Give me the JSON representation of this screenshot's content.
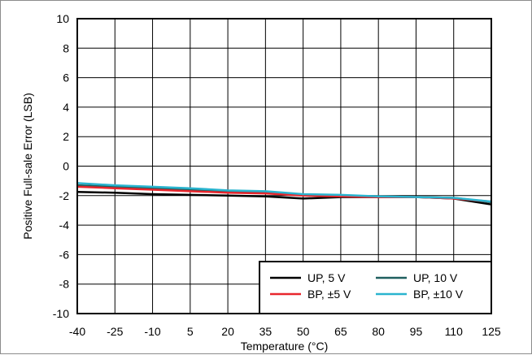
{
  "chart_data": {
    "type": "line",
    "title": "",
    "xlabel": "Temperature (°C)",
    "ylabel": "Positive Full-sale Error (LSB)",
    "xlim": [
      -40,
      125
    ],
    "ylim": [
      -10,
      10
    ],
    "x_ticks": [
      -40,
      -25,
      -10,
      5,
      20,
      35,
      50,
      65,
      80,
      95,
      110,
      125
    ],
    "y_ticks": [
      10,
      8,
      6,
      4,
      2,
      0,
      -2,
      -4,
      -6,
      -8,
      -10
    ],
    "grid": true,
    "legend_position": "bottom-right",
    "x": [
      -40,
      -25,
      -10,
      5,
      20,
      35,
      50,
      65,
      80,
      95,
      110,
      125
    ],
    "series": [
      {
        "name": "UP, 5 V",
        "color": "#000000",
        "values": [
          -1.75,
          -1.8,
          -1.9,
          -1.95,
          -2.0,
          -2.05,
          -2.2,
          -2.1,
          -2.1,
          -2.1,
          -2.2,
          -2.6
        ]
      },
      {
        "name": "UP, 10 V",
        "color": "#1f5f5f",
        "values": [
          -1.3,
          -1.4,
          -1.5,
          -1.6,
          -1.7,
          -1.75,
          -1.95,
          -2.0,
          -2.05,
          -2.1,
          -2.15,
          -2.45
        ]
      },
      {
        "name": "BP, ±5 V",
        "color": "#e8262d",
        "values": [
          -1.4,
          -1.5,
          -1.6,
          -1.7,
          -1.8,
          -1.85,
          -2.0,
          -2.05,
          -2.1,
          -2.1,
          -2.2,
          -2.4
        ]
      },
      {
        "name": "BP, ±10 V",
        "color": "#2ab4cf",
        "values": [
          -1.15,
          -1.3,
          -1.4,
          -1.5,
          -1.65,
          -1.7,
          -1.9,
          -1.95,
          -2.05,
          -2.1,
          -2.15,
          -2.4
        ]
      }
    ],
    "legend_order": [
      0,
      1,
      2,
      3
    ]
  }
}
